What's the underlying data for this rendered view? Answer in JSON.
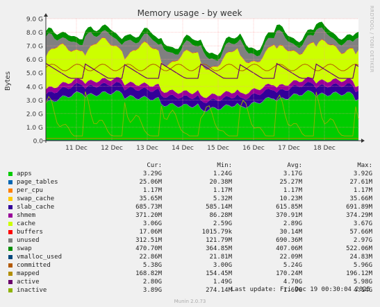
{
  "chart_data": {
    "type": "area",
    "title": "Memory usage - by week",
    "ylabel": "Bytes",
    "xlabel": "",
    "ylim": [
      0,
      9
    ],
    "yticks": [
      "0.0",
      "1.0 G",
      "2.0 G",
      "3.0 G",
      "4.0 G",
      "5.0 G",
      "6.0 G",
      "7.0 G",
      "8.0 G",
      "9.0 G"
    ],
    "xticks": [
      "11 Dec",
      "12 Dec",
      "13 Dec",
      "14 Dec",
      "15 Dec",
      "16 Dec",
      "17 Dec",
      "18 Dec"
    ],
    "grid": true,
    "legend": "bottom",
    "stacked_order": [
      "apps",
      "page_tables",
      "per_cpu",
      "swap_cache",
      "slab_cache",
      "shmem",
      "cache",
      "buffers",
      "unused",
      "swap"
    ],
    "line_series": [
      "vmalloc_used",
      "committed",
      "mapped",
      "active",
      "inactive"
    ]
  },
  "legend": {
    "header": {
      "cur": "Cur:",
      "min": "Min:",
      "avg": "Avg:",
      "max": "Max:"
    },
    "rows": [
      {
        "name": "apps",
        "color": "#00cc00",
        "cur": "3.29G",
        "min": "1.24G",
        "avg": "3.17G",
        "max": "3.92G"
      },
      {
        "name": "page_tables",
        "color": "#0066b3",
        "cur": "25.06M",
        "min": "20.38M",
        "avg": "25.27M",
        "max": "27.61M"
      },
      {
        "name": "per_cpu",
        "color": "#ff8000",
        "cur": "1.17M",
        "min": "1.17M",
        "avg": "1.17M",
        "max": "1.17M"
      },
      {
        "name": "swap_cache",
        "color": "#ffcc00",
        "cur": "35.65M",
        "min": "5.32M",
        "avg": "10.23M",
        "max": "35.66M"
      },
      {
        "name": "slab_cache",
        "color": "#330099",
        "cur": "685.73M",
        "min": "585.14M",
        "avg": "615.85M",
        "max": "691.89M"
      },
      {
        "name": "shmem",
        "color": "#990099",
        "cur": "371.20M",
        "min": "86.28M",
        "avg": "370.91M",
        "max": "374.29M"
      },
      {
        "name": "cache",
        "color": "#ccff00",
        "cur": "3.06G",
        "min": "2.59G",
        "avg": "2.89G",
        "max": "3.67G"
      },
      {
        "name": "buffers",
        "color": "#ff0000",
        "cur": "17.06M",
        "min": "1015.79k",
        "avg": "30.14M",
        "max": "57.66M"
      },
      {
        "name": "unused",
        "color": "#808080",
        "cur": "312.51M",
        "min": "121.79M",
        "avg": "690.36M",
        "max": "2.97G"
      },
      {
        "name": "swap",
        "color": "#008f00",
        "cur": "470.70M",
        "min": "364.85M",
        "avg": "407.06M",
        "max": "522.06M"
      },
      {
        "name": "vmalloc_used",
        "color": "#00487d",
        "cur": "22.86M",
        "min": "21.81M",
        "avg": "22.09M",
        "max": "24.83M"
      },
      {
        "name": "committed",
        "color": "#b35a00",
        "cur": "5.38G",
        "min": "3.00G",
        "avg": "5.24G",
        "max": "5.96G"
      },
      {
        "name": "mapped",
        "color": "#b38f00",
        "cur": "168.82M",
        "min": "154.45M",
        "avg": "170.24M",
        "max": "196.12M"
      },
      {
        "name": "active",
        "color": "#6b006b",
        "cur": "2.80G",
        "min": "1.49G",
        "avg": "4.70G",
        "max": "5.98G"
      },
      {
        "name": "inactive",
        "color": "#8fb300",
        "cur": "3.89G",
        "min": "274.14M",
        "avg": "1.69G",
        "max": "4.14G"
      }
    ]
  },
  "footer": {
    "last_update": "Last update: Fri Dec 19 00:30:04 2025",
    "version": "Munin 2.0.73"
  },
  "side_credit": "RRDTOOL / TOBI OETIKER"
}
